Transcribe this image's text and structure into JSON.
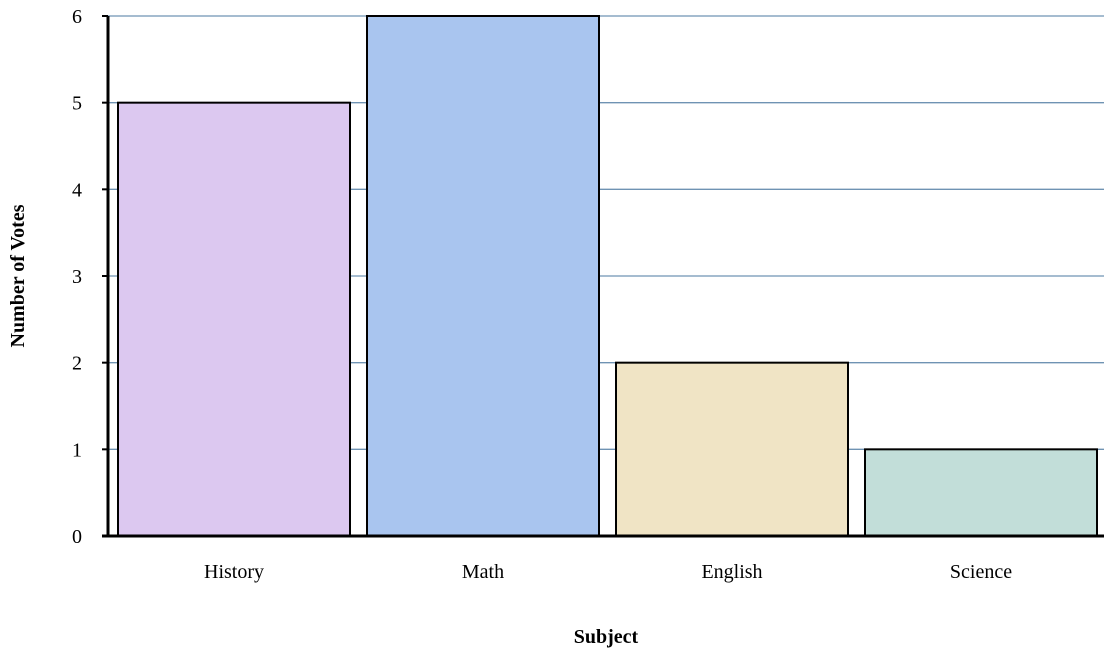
{
  "chart_data": {
    "type": "bar",
    "title": "",
    "xlabel": "Subject",
    "ylabel": "Number of Votes",
    "categories": [
      "History",
      "Math",
      "English",
      "Science"
    ],
    "values": [
      5,
      6,
      2,
      1
    ],
    "ylim": [
      0,
      6
    ],
    "yticks": [
      "0",
      "1",
      "2",
      "3",
      "4",
      "5",
      "6"
    ],
    "grid": true,
    "legend": "none",
    "colors": {
      "bars": [
        "#dcc8f0",
        "#a9c5ef",
        "#f0e4c5",
        "#c2ded9"
      ],
      "bar_outline": "#000000",
      "gridline": "#6f93b3",
      "axis": "#000000"
    }
  }
}
